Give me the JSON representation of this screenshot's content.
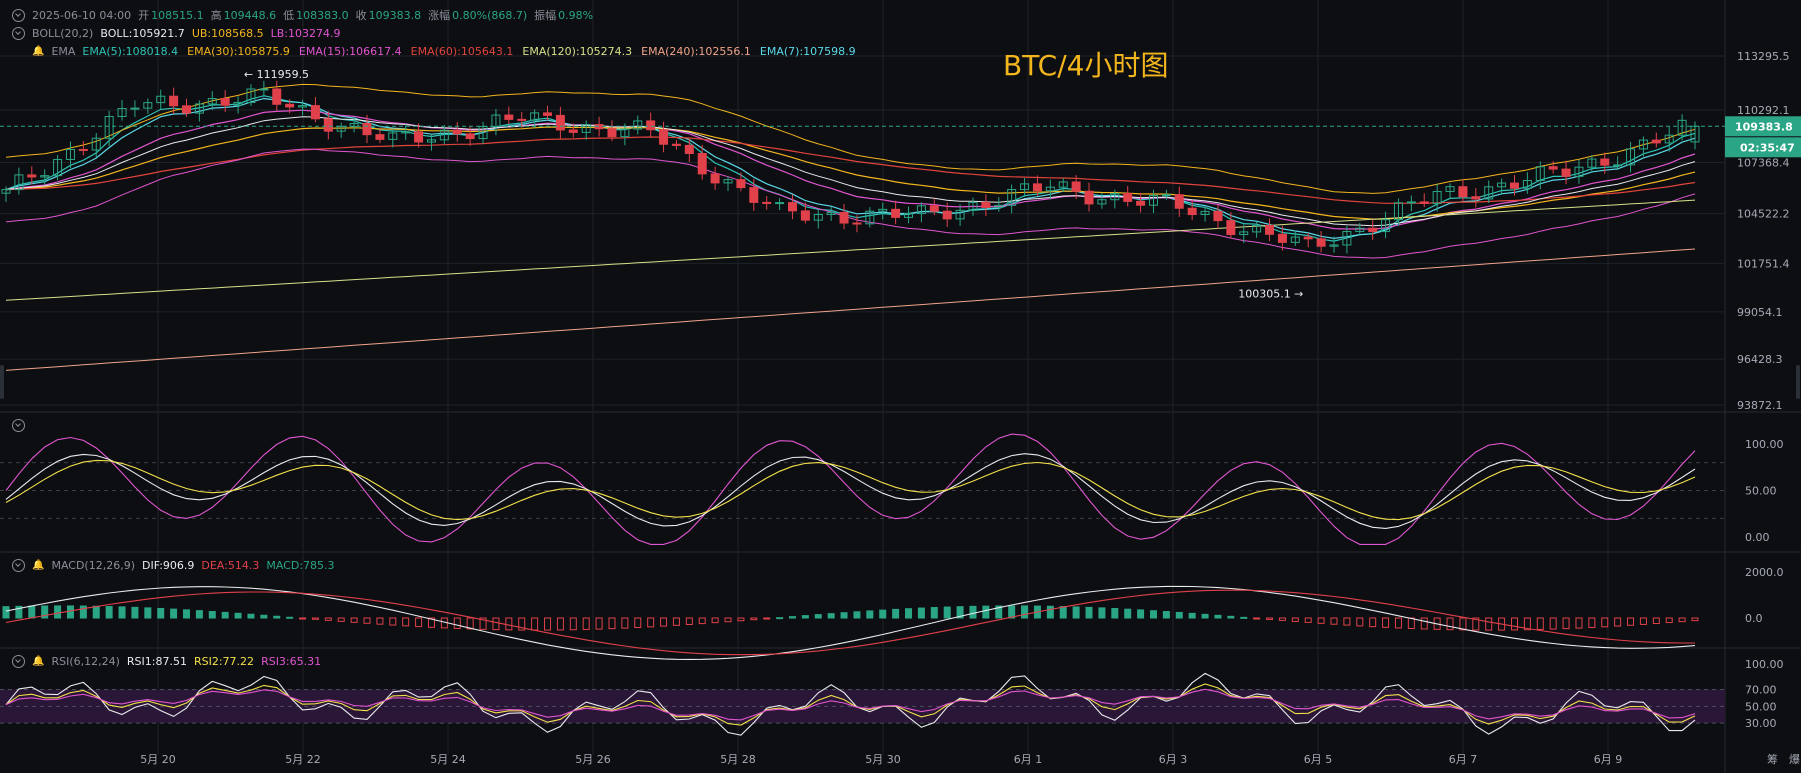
{
  "header": {
    "datetime": "2025-06-10 04:00",
    "open_label": "开",
    "open": "108515.1",
    "high_label": "高",
    "high": "109448.6",
    "low_label": "低",
    "low": "108383.0",
    "close_label": "收",
    "close": "109383.8",
    "change_label": "涨幅",
    "change": "0.80%(868.7)",
    "amp_label": "振幅",
    "amp": "0.98%"
  },
  "boll": {
    "name": "BOLL(20,2)",
    "mid": "BOLL:105921.7",
    "ub": "UB:108568.5",
    "lb": "LB:103274.9"
  },
  "ema": {
    "name": "EMA",
    "items": [
      {
        "text": "EMA(5):108018.4",
        "color": "#2ec4b6"
      },
      {
        "text": "EMA(30):105875.9",
        "color": "#f2b51d"
      },
      {
        "text": "EMA(15):106617.4",
        "color": "#e055d0"
      },
      {
        "text": "EMA(60):105643.1",
        "color": "#e0443c"
      },
      {
        "text": "EMA(120):105274.3",
        "color": "#d7e08a"
      },
      {
        "text": "EMA(240):102556.1",
        "color": "#f0a48a"
      },
      {
        "text": "EMA(7):107598.9",
        "color": "#5ad8e8"
      }
    ]
  },
  "macd_header": {
    "name": "MACD(12,26,9)",
    "dif": "DIF:906.9",
    "dea": "DEA:514.3",
    "macd": "MACD:785.3"
  },
  "rsi_header": {
    "name": "RSI(6,12,24)",
    "rsi1": "RSI1:87.51",
    "rsi2": "RSI2:77.22",
    "rsi3": "RSI3:65.31"
  },
  "title": "BTC/4小时图",
  "price_labels": [
    "113295.5",
    "110292.1",
    "107368.4",
    "104522.2",
    "101751.4",
    "99054.1",
    "96428.3",
    "93872.1"
  ],
  "current_price": "109383.8",
  "countdown": "02:35:47",
  "kdj_labels": [
    "100.00",
    "50.00",
    "0.00"
  ],
  "macd_labels": [
    "2000.0",
    "0.0"
  ],
  "rsi_labels": [
    "100.00",
    "70.00",
    "50.00",
    "30.00"
  ],
  "x_labels": [
    "5月 20",
    "5月 22",
    "5月 24",
    "5月 26",
    "5月 28",
    "5月 30",
    "6月 1",
    "6月 3",
    "6月 5",
    "6月 7",
    "6月 9"
  ],
  "footer_right": [
    "筹",
    "爆"
  ],
  "annotations": {
    "high": "111959.5",
    "low": "100305.1"
  },
  "colors": {
    "up": "#2aa585",
    "down": "#e0414a",
    "bg": "#0d0e12",
    "grid": "#1e2128",
    "accent": "#f2b51d"
  },
  "chart_data": {
    "type": "candlestick",
    "title": "BTC/4小时图",
    "timeframe": "4h",
    "period": "2025-05-19 to 2025-06-10",
    "y_range_main": [
      93872.1,
      113295.5
    ],
    "annotated_high": 111959.5,
    "annotated_low": 100305.1,
    "last_candle": {
      "open": 108515.1,
      "high": 109448.6,
      "low": 108383.0,
      "close": 109383.8
    },
    "key_closes_approx": [
      {
        "x": "5月 20",
        "close": 105600
      },
      {
        "x": "5月 22",
        "close": 110500
      },
      {
        "x": "5月 23",
        "close": 111000
      },
      {
        "x": "5月 24",
        "close": 108500
      },
      {
        "x": "5月 26",
        "close": 109800
      },
      {
        "x": "5月 28",
        "close": 109000
      },
      {
        "x": "5月 30",
        "close": 104500
      },
      {
        "x": "6月 1",
        "close": 104400
      },
      {
        "x": "6月 3",
        "close": 106000
      },
      {
        "x": "6月 5",
        "close": 104900
      },
      {
        "x": "6月 6",
        "close": 102600
      },
      {
        "x": "6月 7",
        "close": 105500
      },
      {
        "x": "6月 9",
        "close": 106800
      },
      {
        "x": "6月 10",
        "close": 109383.8
      }
    ],
    "indicators": {
      "BOLL(20,2)": {
        "mid": 105921.7,
        "ub": 108568.5,
        "lb": 103274.9
      },
      "EMA": {
        "5": 108018.4,
        "7": 107598.9,
        "15": 106617.4,
        "30": 105875.9,
        "60": 105643.1,
        "120": 105274.3,
        "240": 102556.1
      },
      "MACD(12,26,9)": {
        "dif": 906.9,
        "dea": 514.3,
        "macd": 785.3
      },
      "RSI(6,12,24)": {
        "rsi1": 87.51,
        "rsi2": 77.22,
        "rsi3": 65.31
      },
      "KDJ_range": [
        0,
        100
      ]
    },
    "grid": true
  }
}
